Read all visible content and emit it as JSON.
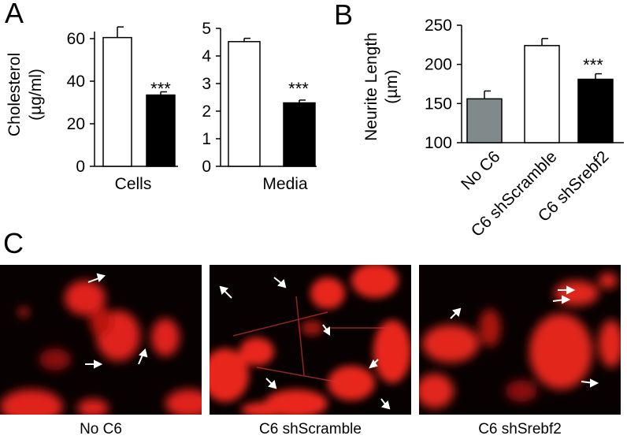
{
  "panel_labels": {
    "a": "A",
    "b": "B",
    "c": "C"
  },
  "significance": "***",
  "chart_data": [
    {
      "type": "bar",
      "panel": "A",
      "categories": [
        "Cells"
      ],
      "series": [
        {
          "values": [
            60.5
          ],
          "errors": [
            5
          ],
          "color": "#ffffff"
        },
        {
          "values": [
            33.5
          ],
          "errors": [
            1.5
          ],
          "color": "#000000"
        }
      ],
      "ylabel_line1": "Cholesterol",
      "ylabel_line2": "(µg/ml)",
      "ylim": [
        0,
        70
      ],
      "yticks": [
        "0",
        "20",
        "40",
        "60"
      ],
      "annotation": "***"
    },
    {
      "type": "bar",
      "panel": "A",
      "categories": [
        "Media"
      ],
      "series": [
        {
          "values": [
            4.52
          ],
          "errors": [
            0.12
          ],
          "color": "#ffffff"
        },
        {
          "values": [
            2.3
          ],
          "errors": [
            0.1
          ],
          "color": "#000000"
        }
      ],
      "ylim": [
        0,
        5
      ],
      "yticks": [
        "0",
        "1",
        "2",
        "3",
        "4",
        "5"
      ],
      "annotation": "***"
    },
    {
      "type": "bar",
      "panel": "B",
      "categories": [
        "No C6",
        "C6 shScramble",
        "C6 shSrebf2"
      ],
      "values": [
        156,
        224,
        181
      ],
      "errors": [
        10,
        9,
        7
      ],
      "colors": [
        "#808a8a",
        "#ffffff",
        "#000000"
      ],
      "ylabel_line1": "Neurite Length",
      "ylabel_line2": "(µm)",
      "ylim": [
        100,
        250
      ],
      "yticks": [
        "100",
        "150",
        "200",
        "250"
      ],
      "annotation": "***"
    }
  ],
  "micrographs": [
    {
      "label": "No C6"
    },
    {
      "label": "C6 shScramble"
    },
    {
      "label": "C6 shSrebf2"
    }
  ]
}
